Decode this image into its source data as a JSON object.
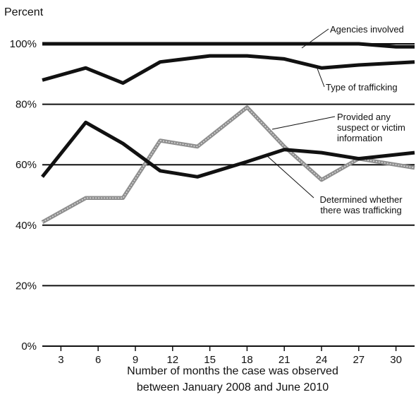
{
  "chart_data": {
    "type": "line",
    "ylabel": "Percent",
    "xlabel_lines": [
      "Number of months the case was observed",
      "between January 2008 and June 2010"
    ],
    "xlim": [
      1.5,
      31.5
    ],
    "ylim": [
      0,
      100
    ],
    "x_ticks": [
      3,
      6,
      9,
      12,
      15,
      18,
      21,
      24,
      27,
      30
    ],
    "x_tick_labels": [
      "3",
      "6",
      "9",
      "12",
      "15",
      "18",
      "21",
      "24",
      "27",
      "30"
    ],
    "y_ticks": [
      0,
      20,
      40,
      60,
      80,
      100
    ],
    "y_tick_labels": [
      "0%",
      "20%",
      "40%",
      "60%",
      "80%",
      "100%"
    ],
    "grid": "horizontal",
    "series": [
      {
        "name": "Agencies involved",
        "label_lines": [
          "Agencies involved"
        ],
        "color": "#111111",
        "style": "solid",
        "x": [
          1.5,
          3,
          6,
          9,
          12,
          15,
          18,
          21,
          24,
          27,
          30,
          31.5
        ],
        "values": [
          100,
          100,
          100,
          100,
          100,
          100,
          100,
          100,
          100,
          100,
          99,
          99
        ]
      },
      {
        "name": "Type of trafficking",
        "label_lines": [
          "Type of trafficking"
        ],
        "color": "#111111",
        "style": "solid",
        "x": [
          1.5,
          5,
          8,
          11,
          15,
          18,
          21,
          24,
          27,
          31.5
        ],
        "values": [
          88,
          92,
          87,
          94,
          96,
          96,
          95,
          92,
          93,
          94
        ]
      },
      {
        "name": "Provided any suspect or victim information",
        "label_lines": [
          "Provided any",
          "suspect or victim",
          "information"
        ],
        "color": "#9a9a9a",
        "style": "gray",
        "x": [
          1.5,
          5,
          8,
          11,
          14,
          18,
          21,
          24,
          27,
          31.5
        ],
        "values": [
          41,
          49,
          49,
          68,
          66,
          79,
          66,
          55,
          62,
          59
        ]
      },
      {
        "name": "Determined whether there was trafficking",
        "label_lines": [
          "Determined whether",
          "there was trafficking"
        ],
        "color": "#111111",
        "style": "solid",
        "x": [
          1.5,
          5,
          8,
          11,
          14,
          18,
          21,
          24,
          27,
          31.5
        ],
        "values": [
          56,
          74,
          67,
          58,
          56,
          61,
          65,
          64,
          62,
          64
        ]
      }
    ]
  }
}
